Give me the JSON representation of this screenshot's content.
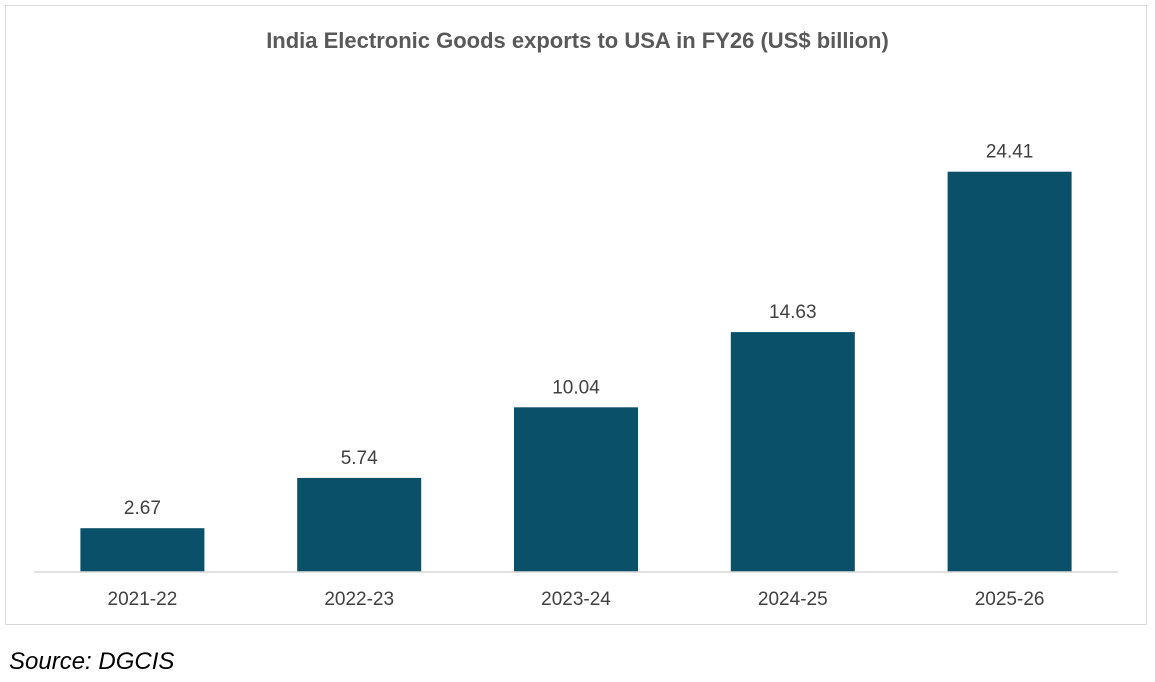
{
  "chart_data": {
    "type": "bar",
    "title": "India Electronic Goods exports to USA in FY26 (US$ billion)",
    "categories": [
      "2021-22",
      "2022-23",
      "2023-24",
      "2024-25",
      "2025-26"
    ],
    "values": [
      2.67,
      5.74,
      10.04,
      14.63,
      24.41
    ],
    "data_labels": [
      "2.67",
      "5.74",
      "10.04",
      "14.63",
      "24.41"
    ],
    "xlabel": "",
    "ylabel": "",
    "ylim": [
      0,
      30
    ],
    "grid": false,
    "legend": "none",
    "colors": {
      "bar": "#0b5069",
      "axis": "#d9d9d9",
      "label": "#404040",
      "title": "#595959"
    }
  },
  "source": "Source: DGCIS"
}
